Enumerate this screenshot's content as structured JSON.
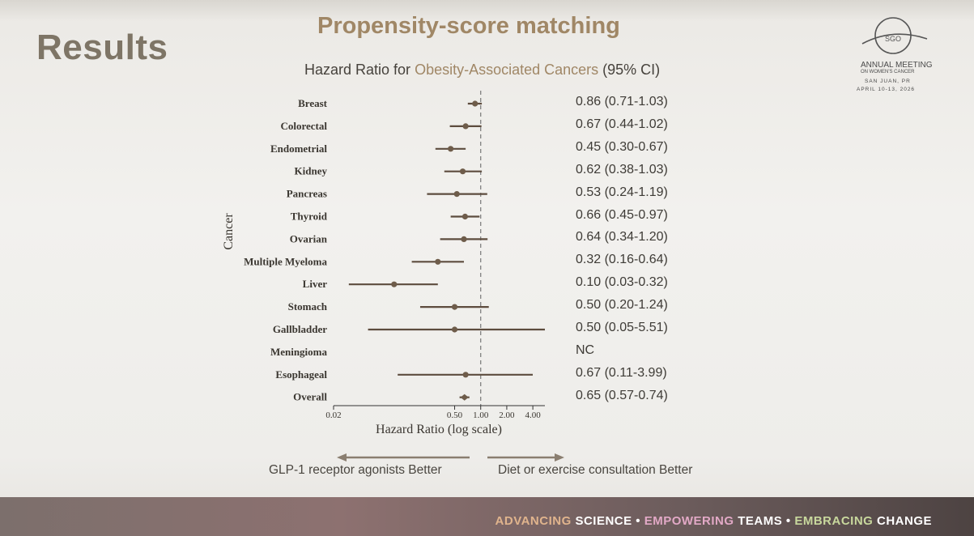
{
  "slide": {
    "title": "Results",
    "section": "Propensity-score matching"
  },
  "header": {
    "title_prefix": "Hazard Ratio for ",
    "title_highlight": "Obesity-Associated Cancers",
    "title_suffix": " (95% CI)"
  },
  "logo": {
    "mark": "SGO",
    "line1": "ANNUAL MEETING",
    "line2": "ON WOMEN'S CANCER",
    "line3": "SAN JUAN, PR",
    "line4": "APRIL 10-13, 2026"
  },
  "chart_data": {
    "type": "forest",
    "ylabel": "Cancer",
    "xlabel": "Hazard Ratio (log scale)",
    "x_scale": "log",
    "x_ticks": [
      0.02,
      0.5,
      1.0,
      2.0,
      4.0
    ],
    "x_tick_labels": [
      "0.02",
      "0.50",
      "1.00",
      "2.00",
      "4.00"
    ],
    "reference_line": 1.0,
    "rows": [
      {
        "label": "Breast",
        "hr": 0.86,
        "lo": 0.71,
        "hi": 1.03,
        "text": "0.86 (0.71-1.03)"
      },
      {
        "label": "Colorectal",
        "hr": 0.67,
        "lo": 0.44,
        "hi": 1.02,
        "text": "0.67 (0.44-1.02)"
      },
      {
        "label": "Endometrial",
        "hr": 0.45,
        "lo": 0.3,
        "hi": 0.67,
        "text": "0.45 (0.30-0.67)"
      },
      {
        "label": "Kidney",
        "hr": 0.62,
        "lo": 0.38,
        "hi": 1.03,
        "text": "0.62 (0.38-1.03)"
      },
      {
        "label": "Pancreas",
        "hr": 0.53,
        "lo": 0.24,
        "hi": 1.19,
        "text": "0.53 (0.24-1.19)"
      },
      {
        "label": "Thyroid",
        "hr": 0.66,
        "lo": 0.45,
        "hi": 0.97,
        "text": "0.66 (0.45-0.97)"
      },
      {
        "label": "Ovarian",
        "hr": 0.64,
        "lo": 0.34,
        "hi": 1.2,
        "text": "0.64 (0.34-1.20)"
      },
      {
        "label": "Multiple Myeloma",
        "hr": 0.32,
        "lo": 0.16,
        "hi": 0.64,
        "text": "0.32 (0.16-0.64)"
      },
      {
        "label": "Liver",
        "hr": 0.1,
        "lo": 0.03,
        "hi": 0.32,
        "text": "0.10 (0.03-0.32)"
      },
      {
        "label": "Stomach",
        "hr": 0.5,
        "lo": 0.2,
        "hi": 1.24,
        "text": "0.50 (0.20-1.24)"
      },
      {
        "label": "Gallbladder",
        "hr": 0.5,
        "lo": 0.05,
        "hi": 5.51,
        "text": "0.50 (0.05-5.51)"
      },
      {
        "label": "Meningioma",
        "hr": null,
        "lo": null,
        "hi": null,
        "text": "NC"
      },
      {
        "label": "Esophageal",
        "hr": 0.67,
        "lo": 0.11,
        "hi": 3.99,
        "text": "0.67 (0.11-3.99)"
      },
      {
        "label": "Overall",
        "hr": 0.65,
        "lo": 0.57,
        "hi": 0.74,
        "text": "0.65 (0.57-0.74)",
        "summary": true
      }
    ],
    "left_better": "GLP-1 receptor agonists Better",
    "right_better": "Diet or exercise consultation Better",
    "colors": {
      "marker": "#6e5c4a",
      "line": "#5d4c3e",
      "arrow": "#8a7e70"
    }
  },
  "footer": {
    "w1": "ADVANCING",
    "w2": " SCIENCE • ",
    "w3": "EMPOWERING",
    "w4": " TEAMS • ",
    "w5": "EMBRACING",
    "w6": " CHANGE"
  }
}
